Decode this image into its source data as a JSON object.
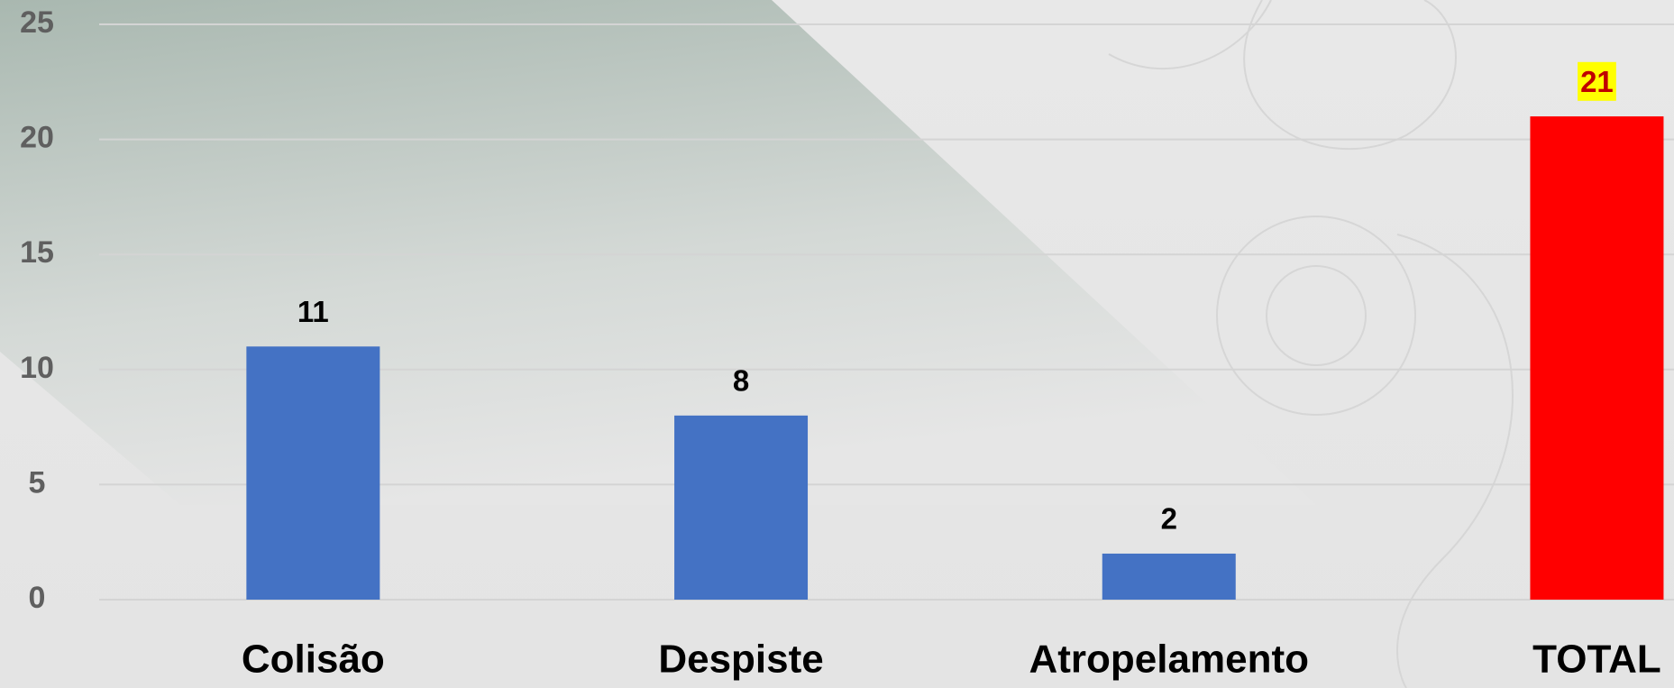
{
  "chart_data": {
    "type": "bar",
    "categories": [
      "Colisão",
      "Despiste",
      "Atropelamento",
      "TOTAL"
    ],
    "values": [
      11,
      8,
      2,
      21
    ],
    "colors": [
      "#4472c4",
      "#4472c4",
      "#4472c4",
      "#ff0000"
    ],
    "value_label_colors": [
      "#000000",
      "#000000",
      "#000000",
      "#c00000"
    ],
    "value_label_backgrounds": [
      null,
      null,
      null,
      "#ffff00"
    ],
    "ylim": [
      0,
      25
    ],
    "yticks": [
      0,
      5,
      10,
      15,
      20,
      25
    ],
    "grid": true
  }
}
